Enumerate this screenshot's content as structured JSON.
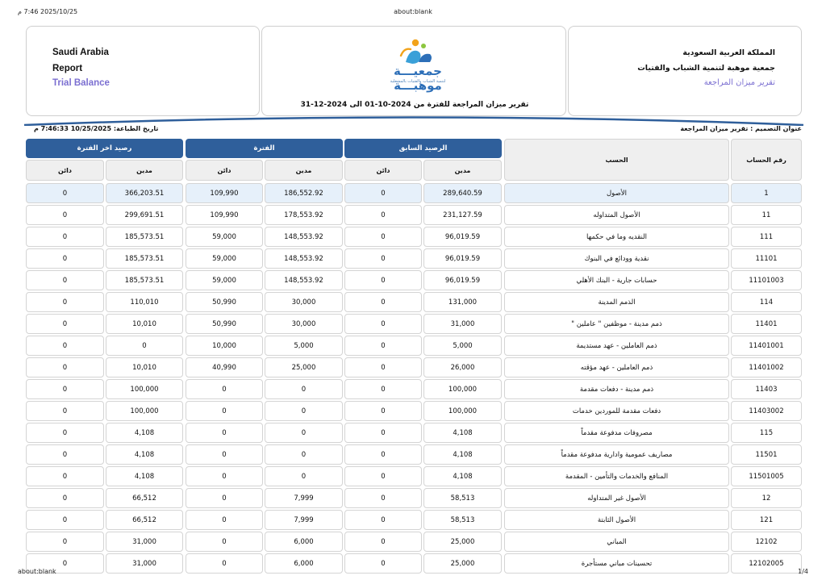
{
  "print_header": {
    "datetime": "2025/10/25 7:46 م",
    "url": "about:blank"
  },
  "print_footer": {
    "url": "about:blank",
    "page": "1/4"
  },
  "org_en": {
    "country": "Saudi Arabia",
    "report": "Report",
    "title": "Trial Balance"
  },
  "org_ar": {
    "country": "المملكة العربية السعودية",
    "org": "جمعية موهبة لتنمية الشباب والفتيات",
    "title": "تقرير ميزان المراجعة"
  },
  "logo": {
    "word": "جمعيـــة موهبـــة",
    "tagline": "لتنمية الشباب والفتيات بالمشعلية"
  },
  "period": "تقرير ميزان المراجعة للفترة من 2024-10-01 الى 2024-12-31",
  "meta": {
    "design_title": "عنوان التصميم : تقرير ميزان المراجعة",
    "print_date": "تاريخ الطباعة: 10/25/2025 7:46:33 م"
  },
  "colors": {
    "header_blue": "#2f5f9b",
    "accent_purple": "#7b6fd1",
    "highlight_row": "#e6f0fa"
  },
  "table": {
    "headers": {
      "account_no": "رقم الحساب",
      "account": "الحسب",
      "prev_balance": "الرصيد السابق",
      "period": "الفترة",
      "end_balance": "رصيد اخر الفترة",
      "debit": "مدين",
      "credit": "دائن"
    },
    "rows": [
      {
        "no": "1",
        "name": "الأصول",
        "prev_debit": "289,640.59",
        "prev_credit": "0",
        "per_debit": "186,552.92",
        "per_credit": "109,990",
        "end_debit": "366,203.51",
        "end_credit": "0"
      },
      {
        "no": "11",
        "name": "الأصول المتداوله",
        "prev_debit": "231,127.59",
        "prev_credit": "0",
        "per_debit": "178,553.92",
        "per_credit": "109,990",
        "end_debit": "299,691.51",
        "end_credit": "0"
      },
      {
        "no": "111",
        "name": "النقديه وما في حكمها",
        "prev_debit": "96,019.59",
        "prev_credit": "0",
        "per_debit": "148,553.92",
        "per_credit": "59,000",
        "end_debit": "185,573.51",
        "end_credit": "0"
      },
      {
        "no": "11101",
        "name": "نقدية وودائع في البنوك",
        "prev_debit": "96,019.59",
        "prev_credit": "0",
        "per_debit": "148,553.92",
        "per_credit": "59,000",
        "end_debit": "185,573.51",
        "end_credit": "0"
      },
      {
        "no": "11101003",
        "name": "حسابات جارية - البنك الأهلي",
        "prev_debit": "96,019.59",
        "prev_credit": "0",
        "per_debit": "148,553.92",
        "per_credit": "59,000",
        "end_debit": "185,573.51",
        "end_credit": "0"
      },
      {
        "no": "114",
        "name": "الذمم المدينة",
        "prev_debit": "131,000",
        "prev_credit": "0",
        "per_debit": "30,000",
        "per_credit": "50,990",
        "end_debit": "110,010",
        "end_credit": "0"
      },
      {
        "no": "11401",
        "name": "ذمم مدينة - موظفين \" عاملين \"",
        "prev_debit": "31,000",
        "prev_credit": "0",
        "per_debit": "30,000",
        "per_credit": "50,990",
        "end_debit": "10,010",
        "end_credit": "0"
      },
      {
        "no": "11401001",
        "name": "ذمم العاملين - عهد مستديمة",
        "prev_debit": "5,000",
        "prev_credit": "0",
        "per_debit": "5,000",
        "per_credit": "10,000",
        "end_debit": "0",
        "end_credit": "0"
      },
      {
        "no": "11401002",
        "name": "ذمم العاملين - عهد مؤقته",
        "prev_debit": "26,000",
        "prev_credit": "0",
        "per_debit": "25,000",
        "per_credit": "40,990",
        "end_debit": "10,010",
        "end_credit": "0"
      },
      {
        "no": "11403",
        "name": "ذمم مدينة - دفعات مقدمة",
        "prev_debit": "100,000",
        "prev_credit": "0",
        "per_debit": "0",
        "per_credit": "0",
        "end_debit": "100,000",
        "end_credit": "0"
      },
      {
        "no": "11403002",
        "name": "دفعات مقدمة للموردين خدمات",
        "prev_debit": "100,000",
        "prev_credit": "0",
        "per_debit": "0",
        "per_credit": "0",
        "end_debit": "100,000",
        "end_credit": "0"
      },
      {
        "no": "115",
        "name": "مصروفات مدفوعة مقدماً",
        "prev_debit": "4,108",
        "prev_credit": "0",
        "per_debit": "0",
        "per_credit": "0",
        "end_debit": "4,108",
        "end_credit": "0"
      },
      {
        "no": "11501",
        "name": "مصاريف عمومية وادارية مدفوعة مقدماً",
        "prev_debit": "4,108",
        "prev_credit": "0",
        "per_debit": "0",
        "per_credit": "0",
        "end_debit": "4,108",
        "end_credit": "0"
      },
      {
        "no": "11501005",
        "name": "المنافع والخدمات والتأمين - المقدمة",
        "prev_debit": "4,108",
        "prev_credit": "0",
        "per_debit": "0",
        "per_credit": "0",
        "end_debit": "4,108",
        "end_credit": "0"
      },
      {
        "no": "12",
        "name": "الأصول غير المتداوله",
        "prev_debit": "58,513",
        "prev_credit": "0",
        "per_debit": "7,999",
        "per_credit": "0",
        "end_debit": "66,512",
        "end_credit": "0"
      },
      {
        "no": "121",
        "name": "الأصول الثابتة",
        "prev_debit": "58,513",
        "prev_credit": "0",
        "per_debit": "7,999",
        "per_credit": "0",
        "end_debit": "66,512",
        "end_credit": "0"
      },
      {
        "no": "12102",
        "name": "المباني",
        "prev_debit": "25,000",
        "prev_credit": "0",
        "per_debit": "6,000",
        "per_credit": "0",
        "end_debit": "31,000",
        "end_credit": "0"
      },
      {
        "no": "12102005",
        "name": "تحسينات مباني مستأجرة",
        "prev_debit": "25,000",
        "prev_credit": "0",
        "per_debit": "6,000",
        "per_credit": "0",
        "end_debit": "31,000",
        "end_credit": "0"
      }
    ]
  }
}
